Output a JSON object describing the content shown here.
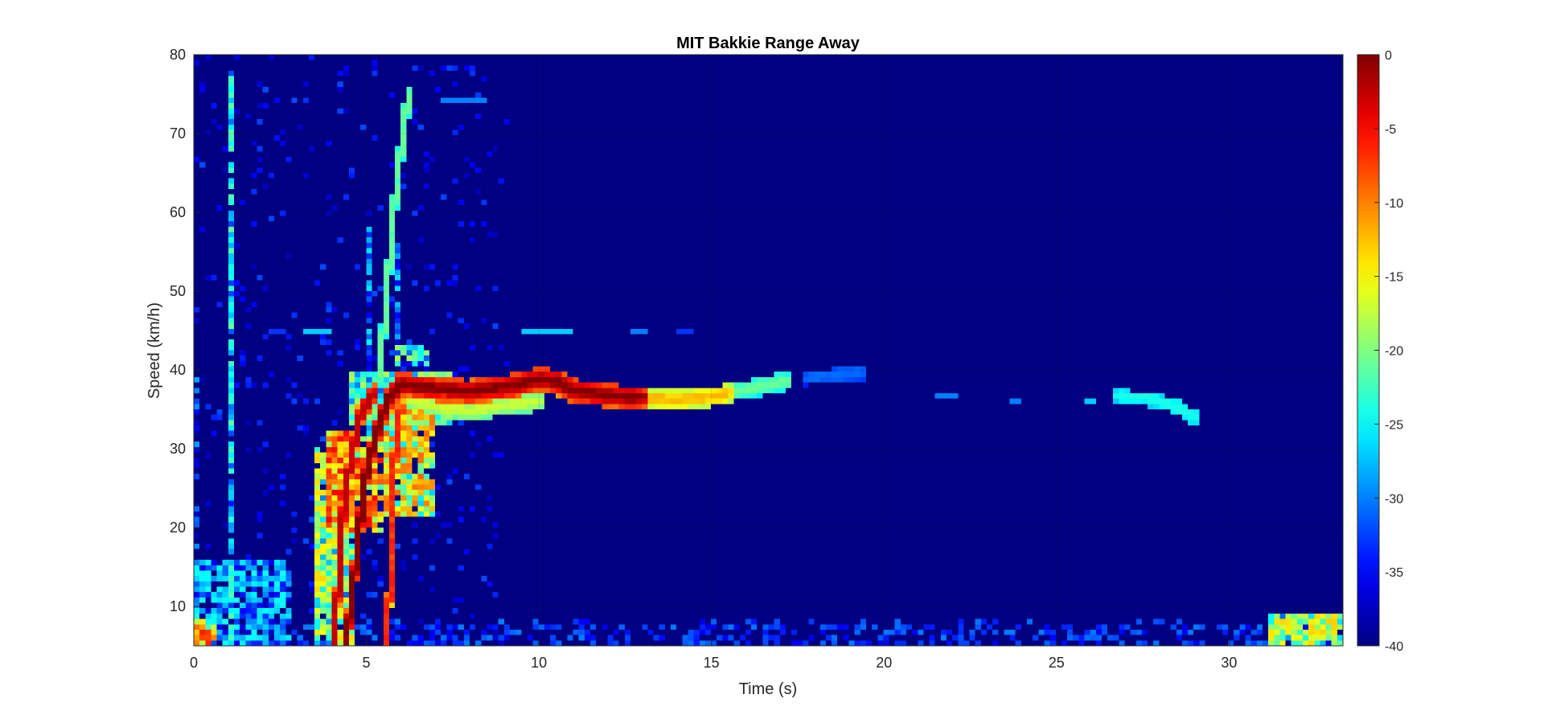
{
  "chart_data": {
    "type": "heatmap",
    "title": "MIT Bakkie Range Away",
    "xlabel": "Time (s)",
    "ylabel": "Speed (km/h)",
    "xlim": [
      0,
      33.3
    ],
    "ylim": [
      5,
      80
    ],
    "xticks": [
      0,
      5,
      10,
      15,
      20,
      25,
      30
    ],
    "yticks": [
      10,
      20,
      30,
      40,
      50,
      60,
      70,
      80
    ],
    "colorbar": {
      "colormap": "jet",
      "limits": [
        -40,
        0
      ],
      "ticks": [
        0,
        -5,
        -10,
        -15,
        -20,
        -25,
        -30,
        -35,
        -40
      ],
      "location": "right"
    },
    "background_level": -40,
    "grid": true,
    "features": [
      {
        "kind": "track",
        "level": -1,
        "width": 1.2,
        "points": [
          [
            4.4,
            5
          ],
          [
            4.6,
            12
          ],
          [
            4.8,
            20
          ],
          [
            5.0,
            27
          ],
          [
            5.3,
            32
          ],
          [
            5.6,
            36
          ],
          [
            6.0,
            38.2
          ],
          [
            7.0,
            37.6
          ],
          [
            8.0,
            37.3
          ],
          [
            9.0,
            37.8
          ],
          [
            10.0,
            38.8
          ],
          [
            10.5,
            38.6
          ],
          [
            11.0,
            37.4
          ],
          [
            12.0,
            36.8
          ],
          [
            13.0,
            36.4
          ]
        ]
      },
      {
        "kind": "track",
        "level": -3,
        "width": 0.9,
        "points": [
          [
            4.1,
            5
          ],
          [
            4.2,
            15
          ],
          [
            4.4,
            25
          ],
          [
            4.8,
            34
          ],
          [
            5.2,
            37
          ]
        ]
      },
      {
        "kind": "track",
        "level": -7,
        "width": 0.8,
        "points": [
          [
            5.6,
            5
          ],
          [
            5.7,
            15
          ],
          [
            5.8,
            28
          ],
          [
            6.0,
            35
          ]
        ]
      },
      {
        "kind": "track",
        "level": -13,
        "width": 0.9,
        "points": [
          [
            13.0,
            36.4
          ],
          [
            14.0,
            36.2
          ],
          [
            15.0,
            36.6
          ],
          [
            15.5,
            37.0
          ]
        ]
      },
      {
        "kind": "track",
        "level": -22,
        "width": 0.8,
        "points": [
          [
            15.5,
            37.0
          ],
          [
            16.5,
            38.0
          ],
          [
            17.2,
            38.6
          ]
        ]
      },
      {
        "kind": "track",
        "level": -32,
        "width": 0.6,
        "points": [
          [
            17.8,
            39.0
          ],
          [
            18.7,
            39.4
          ],
          [
            19.4,
            39.7
          ]
        ]
      },
      {
        "kind": "track",
        "level": -25,
        "width": 0.6,
        "points": [
          [
            26.8,
            36.7
          ],
          [
            27.6,
            36.5
          ],
          [
            28.4,
            35.5
          ],
          [
            29.0,
            34.0
          ]
        ]
      },
      {
        "kind": "track",
        "level": -22,
        "width": 0.9,
        "points": [
          [
            5.2,
            34
          ],
          [
            5.5,
            45
          ],
          [
            5.7,
            55
          ],
          [
            5.9,
            65
          ],
          [
            6.1,
            70
          ],
          [
            6.2,
            75
          ]
        ]
      },
      {
        "kind": "track",
        "level": -18,
        "width": 0.9,
        "points": [
          [
            6.0,
            36.5
          ],
          [
            7.0,
            35.3
          ],
          [
            8.0,
            34.8
          ],
          [
            9.0,
            35.5
          ],
          [
            10.0,
            36.0
          ]
        ]
      },
      {
        "kind": "blob",
        "level": -14,
        "t": [
          3.9,
          5.4
        ],
        "v": [
          20,
          32
        ]
      },
      {
        "kind": "blob",
        "level": -22,
        "t": [
          3.5,
          4.6
        ],
        "v": [
          5,
          30
        ]
      },
      {
        "kind": "blob",
        "level": -18,
        "t": [
          5.5,
          6.9
        ],
        "v": [
          22,
          35
        ]
      },
      {
        "kind": "blob",
        "level": -27,
        "t": [
          4.5,
          7.5
        ],
        "v": [
          33,
          40
        ]
      },
      {
        "kind": "blob",
        "level": -27,
        "t": [
          5.8,
          6.8
        ],
        "v": [
          41,
          43
        ]
      },
      {
        "kind": "vstreak",
        "level": -27,
        "t": 1.1,
        "v": [
          5,
          78
        ]
      },
      {
        "kind": "vstreak",
        "level": -33,
        "t": 0.0,
        "v": [
          5,
          40
        ]
      },
      {
        "kind": "vstreak",
        "level": -31,
        "t": 5.1,
        "v": [
          30,
          58
        ]
      },
      {
        "kind": "vstreak",
        "level": -32,
        "t": 5.9,
        "v": [
          43,
          56
        ]
      },
      {
        "kind": "hsegment",
        "level": -27,
        "v": 45,
        "t": [
          3.3,
          3.9
        ]
      },
      {
        "kind": "hsegment",
        "level": -27,
        "v": 45,
        "t": [
          9.6,
          11.0
        ]
      },
      {
        "kind": "hsegment",
        "level": -30,
        "v": 45,
        "t": [
          12.7,
          13.1
        ]
      },
      {
        "kind": "hsegment",
        "level": -33,
        "v": 45,
        "t": [
          14.1,
          14.4
        ]
      },
      {
        "kind": "hsegment",
        "level": -33,
        "v": 45,
        "t": [
          2.3,
          2.5
        ]
      },
      {
        "kind": "hsegment",
        "level": -30,
        "v": 74,
        "t": [
          7.2,
          8.5
        ]
      },
      {
        "kind": "hsegment",
        "level": -30,
        "v": 36.5,
        "t": [
          21.6,
          22.1
        ]
      },
      {
        "kind": "hsegment",
        "level": -30,
        "v": 35.8,
        "t": [
          23.7,
          24.0
        ]
      },
      {
        "kind": "hsegment",
        "level": -27,
        "v": 36.3,
        "t": [
          25.9,
          26.1
        ]
      },
      {
        "kind": "blob",
        "level": -22,
        "t": [
          31.2,
          33.3
        ],
        "v": [
          5,
          9
        ]
      },
      {
        "kind": "blob",
        "level": -15,
        "t": [
          0.0,
          0.6
        ],
        "v": [
          5,
          8
        ]
      },
      {
        "kind": "blob",
        "level": -33,
        "t": [
          0.0,
          2.8
        ],
        "v": [
          5,
          16
        ]
      }
    ]
  }
}
